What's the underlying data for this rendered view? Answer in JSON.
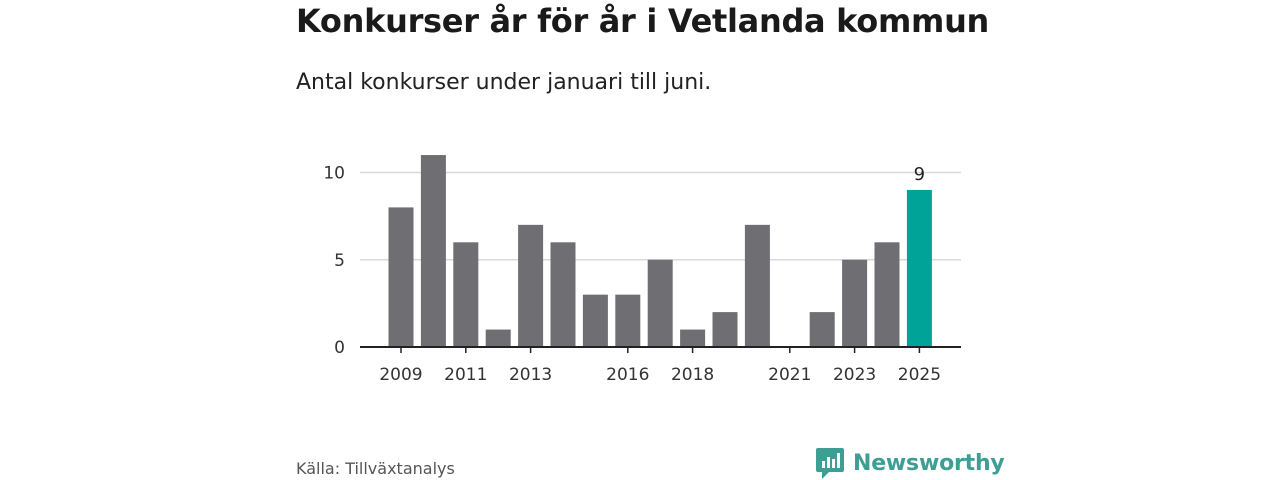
{
  "title": "Konkurser år för år i Vetlanda kommun",
  "subtitle": "Antal konkurser under januari till juni.",
  "source": "Källa: Tillväxtanalys",
  "brand": "Newsworthy",
  "colors": {
    "bar": "#6f6e73",
    "highlight": "#00a398",
    "grid": "#d9d9d9",
    "brand": "#3d9e94"
  },
  "chart_data": {
    "type": "bar",
    "title": "Konkurser år för år i Vetlanda kommun",
    "subtitle": "Antal konkurser under januari till juni.",
    "xlabel": "",
    "ylabel": "",
    "categories": [
      "2009",
      "2010",
      "2011",
      "2012",
      "2013",
      "2014",
      "2015",
      "2016",
      "2017",
      "2018",
      "2019",
      "2020",
      "2021",
      "2022",
      "2023",
      "2024",
      "2025"
    ],
    "values": [
      8,
      11,
      6,
      1,
      7,
      6,
      3,
      3,
      5,
      1,
      2,
      7,
      0,
      2,
      5,
      6,
      9
    ],
    "x_tick_labels": [
      "2009",
      "2011",
      "2013",
      "2016",
      "2018",
      "2021",
      "2023",
      "2025"
    ],
    "y_ticks": [
      0,
      5,
      10
    ],
    "ylim": [
      0,
      11
    ],
    "grid": true,
    "highlight": {
      "category": "2025",
      "label": "9"
    }
  }
}
